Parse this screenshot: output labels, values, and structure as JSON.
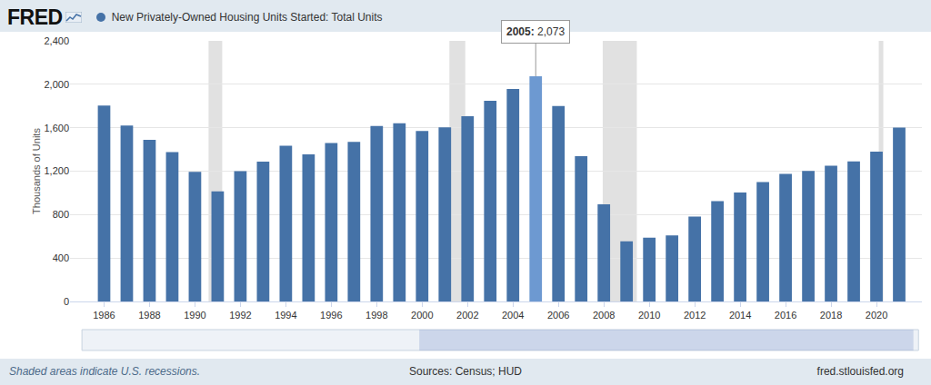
{
  "chart_data": {
    "type": "bar",
    "logo": "FRED",
    "y_label": "Thousands of Units",
    "x": [
      1986,
      1987,
      1988,
      1989,
      1990,
      1991,
      1992,
      1993,
      1994,
      1995,
      1996,
      1997,
      1998,
      1999,
      2000,
      2001,
      2002,
      2003,
      2004,
      2005,
      2006,
      2007,
      2008,
      2009,
      2010,
      2011,
      2012,
      2013,
      2014,
      2015,
      2016,
      2017,
      2018,
      2019,
      2020,
      2021
    ],
    "series": [
      {
        "name": "New Privately-Owned Housing Units Started: Total Units",
        "color": "#4572a7",
        "colors": [
          "#4572a7",
          "#4572a7",
          "#4572a7",
          "#4572a7",
          "#4572a7",
          "#4572a7",
          "#4572a7",
          "#4572a7",
          "#4572a7",
          "#4572a7",
          "#4572a7",
          "#4572a7",
          "#4572a7",
          "#4572a7",
          "#4572a7",
          "#4572a7",
          "#4572a7",
          "#4572a7",
          "#4572a7",
          "#6d99d1",
          "#4572a7",
          "#4572a7",
          "#4572a7",
          "#4572a7",
          "#4572a7",
          "#4572a7",
          "#4572a7",
          "#4572a7",
          "#4572a7",
          "#4572a7",
          "#4572a7",
          "#4572a7",
          "#4572a7",
          "#4572a7",
          "#4572a7",
          "#4572a7"
        ],
        "values": [
          1805,
          1621,
          1488,
          1376,
          1193,
          1014,
          1200,
          1288,
          1435,
          1354,
          1460,
          1470,
          1617,
          1641,
          1569,
          1603,
          1705,
          1848,
          1956,
          2073,
          1801,
          1338,
          895,
          554,
          587,
          609,
          781,
          925,
          1003,
          1100,
          1174,
          1203,
          1250,
          1290,
          1380,
          1601
        ]
      }
    ],
    "xlim": [
      1984.5,
      2022
    ],
    "xticks": [
      1986,
      1988,
      1990,
      1992,
      1994,
      1996,
      1998,
      2000,
      2002,
      2004,
      2006,
      2008,
      2010,
      2012,
      2014,
      2016,
      2018,
      2020
    ],
    "ylim": [
      0,
      2400
    ],
    "yticks": [
      0,
      400,
      800,
      {
        "value": 1200,
        "label": "1,200"
      },
      {
        "value": 1600,
        "label": "1,600"
      },
      {
        "value": 2000,
        "label": "2,000"
      },
      {
        "value": 2400,
        "label": "2,400"
      }
    ],
    "grid": true,
    "legend": "top-left",
    "recessions": [
      {
        "start": 1990.6,
        "end": 1991.2
      },
      {
        "start": 2001.2,
        "end": 2001.9
      },
      {
        "start": 2007.95,
        "end": 2009.45
      },
      {
        "start": 2020.1,
        "end": 2020.3
      }
    ],
    "annotations": [
      {
        "x": 2005,
        "text": "2005: 2,073"
      }
    ],
    "recession_note": "Shaded areas indicate U.S. recessions.",
    "source": "Sources: Census; HUD",
    "url": "fred.stlouisfed.org"
  }
}
